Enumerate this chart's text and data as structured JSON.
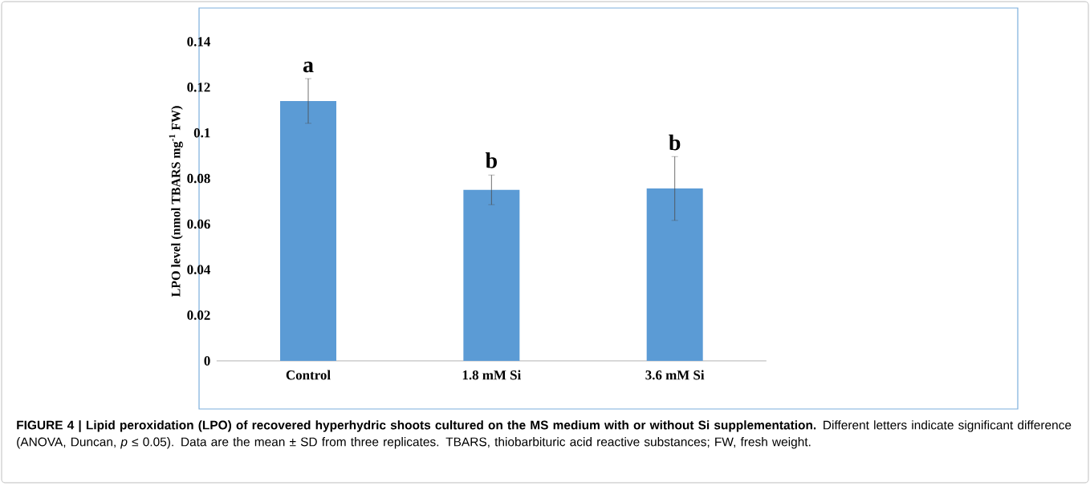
{
  "chart_data": {
    "type": "bar",
    "title": "**FIGURE 4 | Lipid peroxidation (LPO) of recovered hyperhydric shoots cultured on the MS medium with or without Si supplementation.** Different letters indicate significant difference (ANOVA, Duncan, *p* ≤ 0.05). Data are the mean ± SD from three replicates. TBARS, thiobarbituric acid reactive substances; FW, fresh weight.",
    "ylabel": "LPO level (nmol  TBARS mg$^{-1}$ FW)",
    "categories": [
      "Control",
      "1.8 mM Si",
      "3.6 mM Si"
    ],
    "values": [
      0.114,
      0.075,
      0.0756
    ],
    "errors": [
      0.0098,
      0.0065,
      0.014
    ],
    "color": "#5b9bd5",
    "ylim": [
      0,
      0.14
    ],
    "yticks": [
      0,
      0.02,
      0.04,
      0.06,
      0.08,
      {
        "value": 0.1,
        "label": "0.1"
      },
      0.12,
      0.14
    ],
    "annotations": [
      {
        "text": "a",
        "x": "Control",
        "y": 0.1239
      },
      {
        "text": "b",
        "x": "1.8 mM Si",
        "y": 0.0819
      },
      {
        "text": "b",
        "x": "3.6 mM Si",
        "y": 0.0897
      }
    ]
  }
}
